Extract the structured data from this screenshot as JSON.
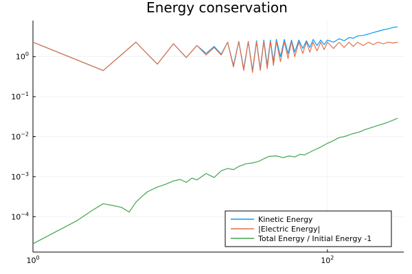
{
  "chart_data": {
    "type": "line",
    "title": "Energy conservation",
    "xlabel": "",
    "ylabel": "",
    "x_scale": "log",
    "y_scale": "log",
    "xlim": [
      1,
      330
    ],
    "ylim": [
      1.3e-05,
      8.0
    ],
    "grid": true,
    "legend_position": "bottom-right",
    "x_ticks": [
      {
        "value": 1,
        "base": "10",
        "exp": "0"
      },
      {
        "value": 100,
        "base": "10",
        "exp": "2"
      }
    ],
    "y_ticks": [
      {
        "value": 1,
        "base": "10",
        "exp": "0"
      },
      {
        "value": 0.1,
        "base": "10",
        "exp": "−1"
      },
      {
        "value": 0.01,
        "base": "10",
        "exp": "−2"
      },
      {
        "value": 0.001,
        "base": "10",
        "exp": "−3"
      },
      {
        "value": 0.0001,
        "base": "10",
        "exp": "−4"
      }
    ],
    "series": [
      {
        "name": "Kinetic Energy",
        "color": "#009AFA",
        "x": [
          1,
          3,
          5,
          7,
          9,
          11,
          13,
          15,
          17,
          19,
          21,
          23,
          25,
          27,
          29,
          31,
          33,
          35,
          37,
          39,
          41,
          43,
          45,
          48,
          51,
          54,
          57,
          60,
          64,
          68,
          72,
          76,
          80,
          85,
          90,
          95,
          100,
          110,
          120,
          130,
          140,
          150,
          160,
          175,
          190,
          205,
          220,
          240,
          260,
          280,
          300
        ],
        "y": [
          2.3,
          0.45,
          2.3,
          0.65,
          2.1,
          0.95,
          1.9,
          1.2,
          1.8,
          1.15,
          2.3,
          0.6,
          2.4,
          0.5,
          2.4,
          0.45,
          2.5,
          0.5,
          2.6,
          0.6,
          2.6,
          0.75,
          2.7,
          1.0,
          2.7,
          1.2,
          2.6,
          1.3,
          2.6,
          1.6,
          2.5,
          1.7,
          2.7,
          1.9,
          2.6,
          2.0,
          2.6,
          2.3,
          2.8,
          2.5,
          3.0,
          2.9,
          3.3,
          3.4,
          3.7,
          4.0,
          4.3,
          4.7,
          5.0,
          5.4,
          5.6
        ]
      },
      {
        "name": "|Electric Energy|",
        "color": "#E26F46",
        "x": [
          1,
          3,
          5,
          7,
          9,
          11,
          13,
          15,
          17,
          19,
          21,
          23,
          25,
          27,
          29,
          31,
          33,
          35,
          37,
          39,
          41,
          43,
          45,
          48,
          51,
          54,
          57,
          60,
          64,
          68,
          72,
          76,
          80,
          85,
          90,
          95,
          100,
          110,
          120,
          130,
          140,
          150,
          160,
          175,
          190,
          205,
          220,
          240,
          260,
          280,
          300
        ],
        "y": [
          2.3,
          0.45,
          2.3,
          0.65,
          2.1,
          0.95,
          1.9,
          1.1,
          1.7,
          1.1,
          2.3,
          0.55,
          2.4,
          0.45,
          2.4,
          0.4,
          2.4,
          0.45,
          2.4,
          0.5,
          2.4,
          0.6,
          2.4,
          0.75,
          2.4,
          0.9,
          2.4,
          1.0,
          2.3,
          1.2,
          2.3,
          1.3,
          2.3,
          1.4,
          2.3,
          1.5,
          2.3,
          1.6,
          2.3,
          1.7,
          2.3,
          1.8,
          2.3,
          1.9,
          2.3,
          2.0,
          2.3,
          2.1,
          2.3,
          2.2,
          2.3
        ]
      },
      {
        "name": "Total Energy / Initial Energy -1",
        "color": "#3EA44E",
        "x": [
          1,
          2,
          2.5,
          3,
          3.5,
          4,
          4.5,
          5,
          5.5,
          6,
          7,
          8,
          9,
          10,
          11,
          12,
          13,
          14,
          15,
          17,
          19,
          21,
          23,
          25,
          28,
          31,
          34,
          37,
          40,
          45,
          50,
          55,
          60,
          65,
          70,
          80,
          90,
          100,
          110,
          120,
          130,
          140,
          150,
          165,
          180,
          200,
          220,
          250,
          280,
          300
        ],
        "y": [
          2.1e-05,
          8e-05,
          0.00014,
          0.00021,
          0.00019,
          0.00017,
          0.00013,
          0.00023,
          0.00032,
          0.00042,
          0.00055,
          0.00065,
          0.00078,
          0.00085,
          0.00072,
          0.00092,
          0.00083,
          0.001,
          0.0012,
          0.00095,
          0.0014,
          0.0016,
          0.0015,
          0.0018,
          0.0021,
          0.0022,
          0.0024,
          0.0028,
          0.0032,
          0.0033,
          0.003,
          0.0033,
          0.0031,
          0.0036,
          0.0035,
          0.0045,
          0.0055,
          0.0068,
          0.008,
          0.0095,
          0.01,
          0.011,
          0.012,
          0.013,
          0.015,
          0.017,
          0.019,
          0.022,
          0.026,
          0.029
        ]
      }
    ]
  }
}
